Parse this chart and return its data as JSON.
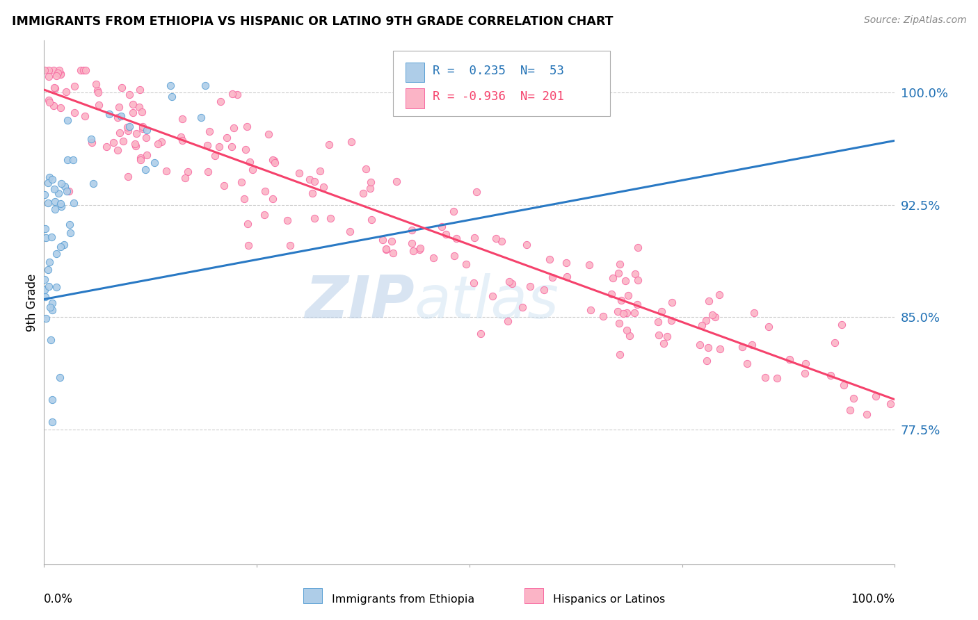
{
  "title": "IMMIGRANTS FROM ETHIOPIA VS HISPANIC OR LATINO 9TH GRADE CORRELATION CHART",
  "source": "Source: ZipAtlas.com",
  "ylabel": "9th Grade",
  "ytick_labels": [
    "100.0%",
    "92.5%",
    "85.0%",
    "77.5%"
  ],
  "ytick_values": [
    1.0,
    0.925,
    0.85,
    0.775
  ],
  "xlim": [
    0.0,
    1.0
  ],
  "ylim": [
    0.685,
    1.035
  ],
  "blue_color": "#aecde8",
  "pink_color": "#fbb4c6",
  "blue_edge_color": "#5a9fd4",
  "pink_edge_color": "#f768a1",
  "blue_line_color": "#2979c4",
  "pink_line_color": "#f5426c",
  "blue_trend_y0": 0.862,
  "blue_trend_y1": 0.968,
  "pink_trend_y0": 1.002,
  "pink_trend_y1": 0.795,
  "watermark_zip_color": "#b8cfe8",
  "watermark_atlas_color": "#c8dff0",
  "grid_color": "#cccccc",
  "legend_text_blue": "R =  0.235  N=  53",
  "legend_text_pink": "R = -0.936  N= 201"
}
